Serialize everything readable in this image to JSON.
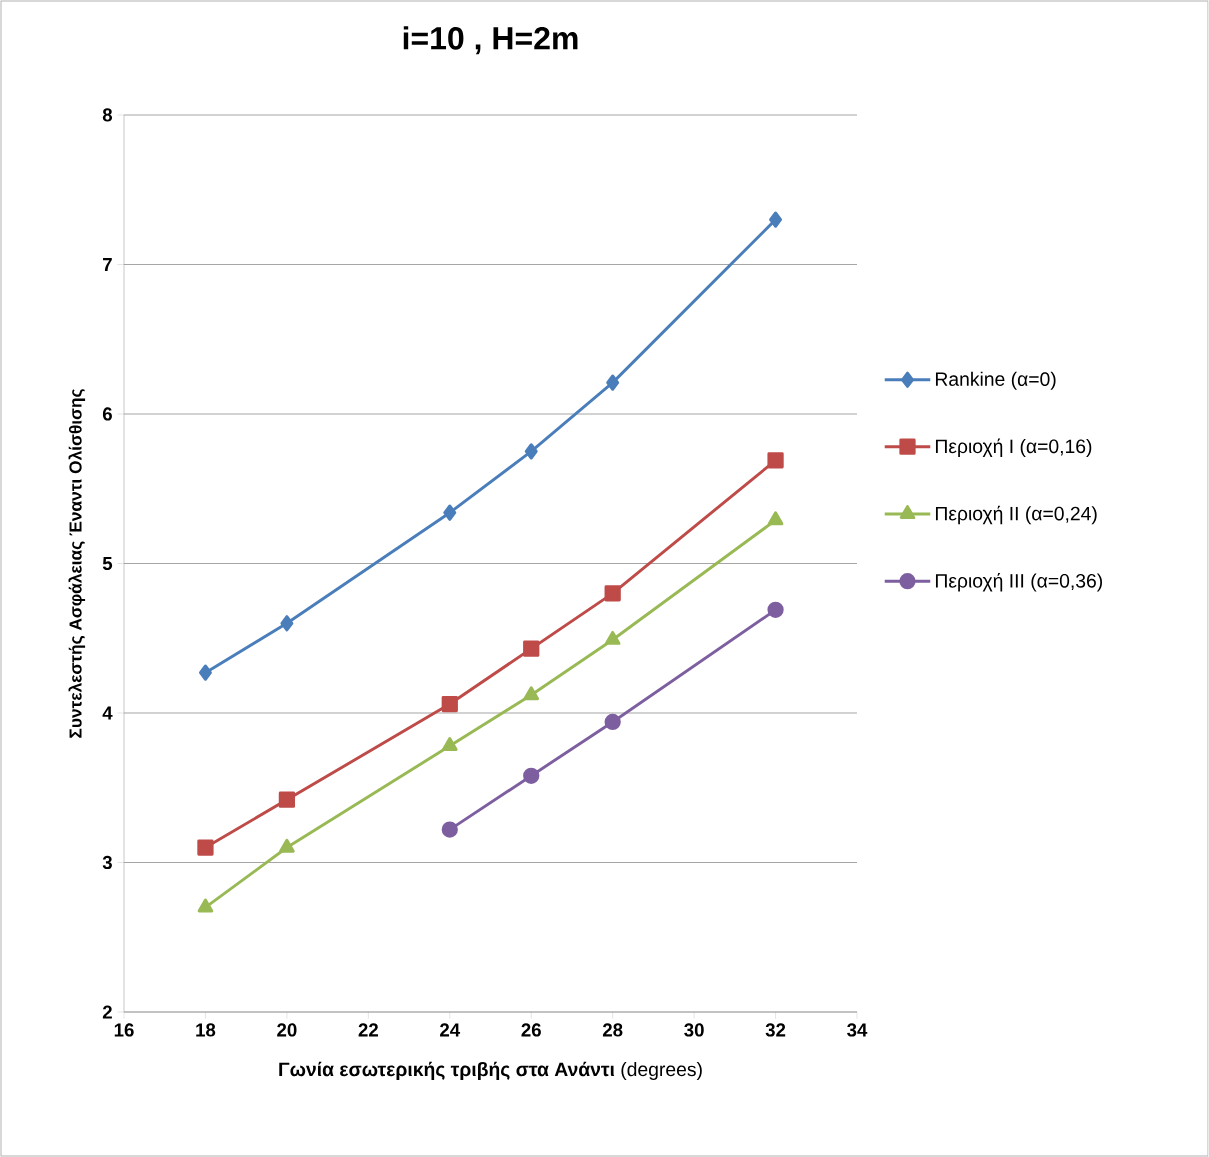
{
  "chart_data": {
    "type": "line",
    "title": "**i=10 , H=2m**",
    "xlabel": "**Γωνία εσωτερικής τριβής στα Ανάντι** (degrees)",
    "ylabel": "Συντελεστής Ασφάλειας Έναντι Ολίσθισης",
    "xlim": [
      16,
      34
    ],
    "xticks": [
      16,
      18,
      20,
      22,
      24,
      26,
      28,
      30,
      32,
      34
    ],
    "ylim": [
      2,
      8
    ],
    "yticks": [
      2,
      3,
      4,
      5,
      6,
      7,
      8
    ],
    "grid": "y",
    "legend": "right",
    "series": [
      {
        "name": "Rankine (α=0)",
        "color": "#4a7ebb",
        "marker": "diamond",
        "x": [
          18,
          20,
          24,
          26,
          28,
          32
        ],
        "values": [
          4.27,
          4.6,
          5.34,
          5.75,
          6.21,
          7.3
        ]
      },
      {
        "name": "Περιοχή I (α=0,16)",
        "color": "#be4b48",
        "marker": "square",
        "x": [
          18,
          20,
          24,
          26,
          28,
          32
        ],
        "values": [
          3.1,
          3.42,
          4.06,
          4.43,
          4.8,
          5.69
        ]
      },
      {
        "name": "Περιοχή II (α=0,24)",
        "color": "#98b954",
        "marker": "triangle",
        "x": [
          18,
          20,
          24,
          26,
          28,
          32
        ],
        "values": [
          2.7,
          3.1,
          3.78,
          4.12,
          4.49,
          5.29
        ]
      },
      {
        "name": "Περιοχή III (α=0,36)",
        "color": "#7d5fa0",
        "marker": "circle",
        "x": [
          24,
          26,
          28,
          32
        ],
        "values": [
          3.22,
          3.58,
          3.94,
          4.69
        ]
      }
    ]
  }
}
